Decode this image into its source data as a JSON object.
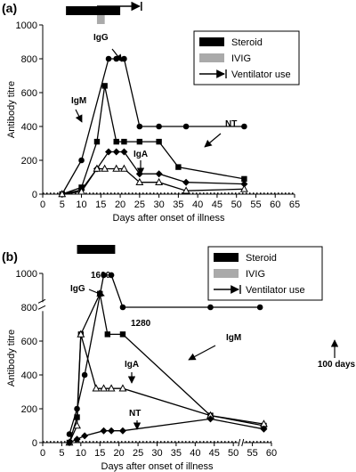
{
  "chart_data": [
    {
      "panel": "(a)",
      "type": "line",
      "xlabel": "Days after onset of illness",
      "ylabel": "Antibody titre",
      "xlim": [
        0,
        65
      ],
      "ylim": [
        0,
        1000
      ],
      "xticks": [
        "0",
        "5",
        "10",
        "15",
        "20",
        "25",
        "30",
        "35",
        "40",
        "45",
        "50",
        "55",
        "60",
        "65"
      ],
      "yticks": [
        "0",
        "200",
        "400",
        "600",
        "800",
        "1000"
      ],
      "legend": {
        "position": "top-right",
        "items": [
          {
            "label": "Steroid",
            "swatch": "black-bar"
          },
          {
            "label": "IVIG",
            "swatch": "gray-bar"
          },
          {
            "label": "Ventilator use",
            "swatch": "arrow"
          }
        ]
      },
      "treatments": {
        "steroid": [
          6,
          20
        ],
        "ivig": [
          14,
          16
        ],
        "ventilator": [
          14,
          25
        ]
      },
      "series": [
        {
          "name": "IgG",
          "marker": "circle",
          "x": [
            5,
            10,
            17,
            19,
            21,
            25,
            30,
            37,
            52
          ],
          "y": [
            0,
            200,
            800,
            800,
            800,
            400,
            400,
            400,
            400
          ]
        },
        {
          "name": "IgM",
          "marker": "square",
          "x": [
            5,
            10,
            14,
            16,
            19,
            21,
            25,
            30,
            35,
            52
          ],
          "y": [
            0,
            40,
            310,
            640,
            310,
            310,
            310,
            310,
            160,
            90
          ]
        },
        {
          "name": "IgA",
          "marker": "diamond",
          "x": [
            5,
            10,
            14,
            17,
            19,
            21,
            25,
            30,
            37,
            52
          ],
          "y": [
            0,
            25,
            150,
            250,
            250,
            250,
            120,
            120,
            70,
            60
          ]
        },
        {
          "name": "NT",
          "marker": "triangle",
          "x": [
            5,
            10,
            14,
            16,
            19,
            21,
            25,
            30,
            37,
            52
          ],
          "y": [
            0,
            15,
            150,
            150,
            150,
            150,
            70,
            70,
            20,
            30
          ]
        }
      ],
      "annotations": [
        {
          "text": "IgG",
          "series": "IgG"
        },
        {
          "text": "IgM",
          "series": "IgM"
        },
        {
          "text": "IgA",
          "series": "IgA"
        },
        {
          "text": "NT",
          "series": "NT"
        }
      ]
    },
    {
      "panel": "(b)",
      "type": "line",
      "xlabel": "Days after onset of illness",
      "ylabel": "Antibody titre",
      "xlim": [
        0,
        60
      ],
      "ylim": [
        0,
        1000
      ],
      "xticks": [
        "0",
        "5",
        "10",
        "15",
        "20",
        "25",
        "30",
        "35",
        "40",
        "45",
        "50",
        "55",
        "60"
      ],
      "yticks": [
        "0",
        "200",
        "400",
        "600",
        "800",
        "1000"
      ],
      "legend": {
        "position": "top-right",
        "items": [
          {
            "label": "Steroid",
            "swatch": "black-bar"
          },
          {
            "label": "IVIG",
            "swatch": "gray-bar"
          },
          {
            "label": "Ventilator use",
            "swatch": "arrow"
          }
        ]
      },
      "treatments": {
        "steroid": [
          9,
          19
        ]
      },
      "series": [
        {
          "name": "IgG",
          "marker": "circle",
          "x": [
            7,
            9,
            11,
            16,
            18,
            21,
            44,
            57
          ],
          "y": [
            50,
            200,
            400,
            990,
            990,
            800,
            800,
            800
          ]
        },
        {
          "name": "IgM",
          "marker": "square",
          "x": [
            7,
            9,
            10,
            15,
            17,
            21,
            44,
            58
          ],
          "y": [
            0,
            150,
            640,
            880,
            640,
            640,
            160,
            100
          ]
        },
        {
          "name": "IgA",
          "marker": "triangle",
          "x": [
            7,
            9,
            10,
            14,
            16,
            18,
            21,
            44,
            58
          ],
          "y": [
            0,
            100,
            640,
            320,
            320,
            320,
            320,
            160,
            110
          ]
        },
        {
          "name": "NT",
          "marker": "diamond",
          "x": [
            7,
            9,
            11,
            16,
            18,
            21,
            44,
            58
          ],
          "y": [
            0,
            20,
            40,
            70,
            70,
            70,
            140,
            80
          ]
        }
      ],
      "annotations": [
        {
          "text": "1600",
          "series": "IgG"
        },
        {
          "text": "1280",
          "series": "IgM"
        },
        {
          "text": "IgG",
          "series": "IgG"
        },
        {
          "text": "IgM",
          "series": "IgM"
        },
        {
          "text": "IgA",
          "series": "IgA"
        },
        {
          "text": "NT",
          "series": "NT"
        },
        {
          "text": "100 days",
          "series": "IgG"
        }
      ]
    }
  ]
}
